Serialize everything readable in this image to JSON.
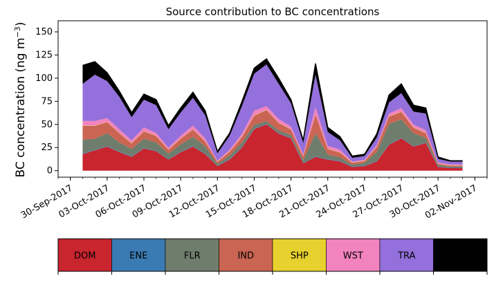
{
  "chart_data": {
    "type": "area",
    "stacked": true,
    "title": "Source contribution to BC concentrations",
    "ylabel": "BC concentration (ng m⁻³)",
    "ylabel_main": "BC concentration (ng m",
    "ylabel_sup": "−3",
    "ylabel_close": ")",
    "xlabel": "",
    "ylim": [
      -7,
      162
    ],
    "xlim": [
      "2017-09-29",
      "2017-11-03"
    ],
    "yticks": [
      0,
      25,
      50,
      75,
      100,
      125,
      150
    ],
    "xticks": [
      "30-Sep-2017",
      "03-Oct-2017",
      "06-Oct-2017",
      "09-Oct-2017",
      "12-Oct-2017",
      "15-Oct-2017",
      "18-Oct-2017",
      "21-Oct-2017",
      "24-Oct-2017",
      "27-Oct-2017",
      "30-Oct-2017",
      "02-Nov-2017"
    ],
    "series_order": [
      "DOM",
      "ENE",
      "FLR",
      "IND",
      "SHP",
      "WST",
      "TRA",
      "BB"
    ],
    "colors": {
      "DOM": "#c9252f",
      "ENE": "#3b7bb4",
      "FLR": "#6f7d6c",
      "IND": "#c96552",
      "SHP": "#e6d12e",
      "WST": "#f283be",
      "TRA": "#9370db",
      "BB": "#000000"
    },
    "series": [
      {
        "name": "DOM",
        "x": [
          "2017-10-01",
          "2017-10-02",
          "2017-10-03",
          "2017-10-04",
          "2017-10-05",
          "2017-10-06",
          "2017-10-07",
          "2017-10-08",
          "2017-10-09",
          "2017-10-10",
          "2017-10-11",
          "2017-10-12",
          "2017-10-13",
          "2017-10-14",
          "2017-10-15",
          "2017-10-16",
          "2017-10-17",
          "2017-10-18",
          "2017-10-19",
          "2017-10-20",
          "2017-10-21",
          "2017-10-22",
          "2017-10-23",
          "2017-10-24",
          "2017-10-25",
          "2017-10-26",
          "2017-10-27",
          "2017-10-28",
          "2017-10-29",
          "2017-10-30",
          "2017-10-31",
          "2017-11-01"
        ],
        "values": [
          18,
          22,
          26,
          20,
          15,
          24,
          21,
          12,
          20,
          26,
          18,
          5,
          12,
          25,
          45,
          50,
          40,
          35,
          8,
          15,
          12,
          10,
          4,
          5,
          10,
          28,
          35,
          26,
          30,
          4,
          3,
          3
        ]
      },
      {
        "name": "ENE",
        "x": [
          "2017-10-01",
          "2017-10-02",
          "2017-10-03",
          "2017-10-04",
          "2017-10-05",
          "2017-10-06",
          "2017-10-07",
          "2017-10-08",
          "2017-10-09",
          "2017-10-10",
          "2017-10-11",
          "2017-10-12",
          "2017-10-13",
          "2017-10-14",
          "2017-10-15",
          "2017-10-16",
          "2017-10-17",
          "2017-10-18",
          "2017-10-19",
          "2017-10-20",
          "2017-10-21",
          "2017-10-22",
          "2017-10-23",
          "2017-10-24",
          "2017-10-25",
          "2017-10-26",
          "2017-10-27",
          "2017-10-28",
          "2017-10-29",
          "2017-10-30",
          "2017-10-31",
          "2017-11-01"
        ],
        "values": [
          0.5,
          0.5,
          0.5,
          0.5,
          0.5,
          0.5,
          0.5,
          0.5,
          0.5,
          0.5,
          0.5,
          0.5,
          0.5,
          0.5,
          0.5,
          0.5,
          0.5,
          0.5,
          0.5,
          0.5,
          0.5,
          0.5,
          0.5,
          0.5,
          0.5,
          0.5,
          0.5,
          0.5,
          0.5,
          0.5,
          0.5,
          0.5
        ]
      },
      {
        "name": "FLR",
        "x": [
          "2017-10-01",
          "2017-10-02",
          "2017-10-03",
          "2017-10-04",
          "2017-10-05",
          "2017-10-06",
          "2017-10-07",
          "2017-10-08",
          "2017-10-09",
          "2017-10-10",
          "2017-10-11",
          "2017-10-12",
          "2017-10-13",
          "2017-10-14",
          "2017-10-15",
          "2017-10-16",
          "2017-10-17",
          "2017-10-18",
          "2017-10-19",
          "2017-10-20",
          "2017-10-21",
          "2017-10-22",
          "2017-10-23",
          "2017-10-24",
          "2017-10-25",
          "2017-10-26",
          "2017-10-27",
          "2017-10-28",
          "2017-10-29",
          "2017-10-30",
          "2017-10-31",
          "2017-11-01"
        ],
        "values": [
          15,
          12,
          14,
          10,
          8,
          10,
          9,
          6,
          8,
          10,
          8,
          2,
          4,
          5,
          4,
          3,
          3,
          3,
          3,
          25,
          5,
          4,
          2,
          3,
          10,
          22,
          20,
          14,
          5,
          2,
          1,
          1
        ]
      },
      {
        "name": "IND",
        "x": [
          "2017-10-01",
          "2017-10-02",
          "2017-10-03",
          "2017-10-04",
          "2017-10-05",
          "2017-10-06",
          "2017-10-07",
          "2017-10-08",
          "2017-10-09",
          "2017-10-10",
          "2017-10-11",
          "2017-10-12",
          "2017-10-13",
          "2017-10-14",
          "2017-10-15",
          "2017-10-16",
          "2017-10-17",
          "2017-10-18",
          "2017-10-19",
          "2017-10-20",
          "2017-10-21",
          "2017-10-22",
          "2017-10-23",
          "2017-10-24",
          "2017-10-25",
          "2017-10-26",
          "2017-10-27",
          "2017-10-28",
          "2017-10-29",
          "2017-10-30",
          "2017-10-31",
          "2017-11-01"
        ],
        "values": [
          15,
          14,
          12,
          10,
          6,
          8,
          7,
          4,
          6,
          8,
          5,
          2,
          4,
          6,
          10,
          12,
          8,
          6,
          4,
          20,
          6,
          5,
          2,
          2,
          5,
          8,
          8,
          6,
          5,
          1,
          1,
          1
        ]
      },
      {
        "name": "SHP",
        "x": [
          "2017-10-01",
          "2017-10-02",
          "2017-10-03",
          "2017-10-04",
          "2017-10-05",
          "2017-10-06",
          "2017-10-07",
          "2017-10-08",
          "2017-10-09",
          "2017-10-10",
          "2017-10-11",
          "2017-10-12",
          "2017-10-13",
          "2017-10-14",
          "2017-10-15",
          "2017-10-16",
          "2017-10-17",
          "2017-10-18",
          "2017-10-19",
          "2017-10-20",
          "2017-10-21",
          "2017-10-22",
          "2017-10-23",
          "2017-10-24",
          "2017-10-25",
          "2017-10-26",
          "2017-10-27",
          "2017-10-28",
          "2017-10-29",
          "2017-10-30",
          "2017-10-31",
          "2017-11-01"
        ],
        "values": [
          0.3,
          0.3,
          0.3,
          0.3,
          0.3,
          0.3,
          0.3,
          0.3,
          0.3,
          0.3,
          0.3,
          0.3,
          0.3,
          0.3,
          0.3,
          0.3,
          0.3,
          0.3,
          0.3,
          0.3,
          0.3,
          0.3,
          0.3,
          0.3,
          0.3,
          0.3,
          0.3,
          0.3,
          0.3,
          0.3,
          0.3,
          0.3
        ]
      },
      {
        "name": "WST",
        "x": [
          "2017-10-01",
          "2017-10-02",
          "2017-10-03",
          "2017-10-04",
          "2017-10-05",
          "2017-10-06",
          "2017-10-07",
          "2017-10-08",
          "2017-10-09",
          "2017-10-10",
          "2017-10-11",
          "2017-10-12",
          "2017-10-13",
          "2017-10-14",
          "2017-10-15",
          "2017-10-16",
          "2017-10-17",
          "2017-10-18",
          "2017-10-19",
          "2017-10-20",
          "2017-10-21",
          "2017-10-22",
          "2017-10-23",
          "2017-10-24",
          "2017-10-25",
          "2017-10-26",
          "2017-10-27",
          "2017-10-28",
          "2017-10-29",
          "2017-10-30",
          "2017-10-31",
          "2017-11-01"
        ],
        "values": [
          5,
          5,
          4,
          4,
          3,
          4,
          3,
          2,
          3,
          4,
          3,
          1,
          2,
          3,
          5,
          4,
          4,
          3,
          2,
          8,
          3,
          3,
          1,
          1,
          2,
          3,
          4,
          3,
          3,
          1,
          1,
          1
        ]
      },
      {
        "name": "TRA",
        "x": [
          "2017-10-01",
          "2017-10-02",
          "2017-10-03",
          "2017-10-04",
          "2017-10-05",
          "2017-10-06",
          "2017-10-07",
          "2017-10-08",
          "2017-10-09",
          "2017-10-10",
          "2017-10-11",
          "2017-10-12",
          "2017-10-13",
          "2017-10-14",
          "2017-10-15",
          "2017-10-16",
          "2017-10-17",
          "2017-10-18",
          "2017-10-19",
          "2017-10-20",
          "2017-10-21",
          "2017-10-22",
          "2017-10-23",
          "2017-10-24",
          "2017-10-25",
          "2017-10-26",
          "2017-10-27",
          "2017-10-28",
          "2017-10-29",
          "2017-10-30",
          "2017-10-31",
          "2017-11-01"
        ],
        "values": [
          40,
          50,
          40,
          35,
          25,
          30,
          30,
          20,
          25,
          30,
          25,
          8,
          15,
          30,
          40,
          45,
          38,
          25,
          12,
          35,
          15,
          10,
          4,
          4,
          8,
          12,
          16,
          14,
          18,
          4,
          3,
          3
        ]
      },
      {
        "name": "BB",
        "x": [
          "2017-10-01",
          "2017-10-02",
          "2017-10-03",
          "2017-10-04",
          "2017-10-05",
          "2017-10-06",
          "2017-10-07",
          "2017-10-08",
          "2017-10-09",
          "2017-10-10",
          "2017-10-11",
          "2017-10-12",
          "2017-10-13",
          "2017-10-14",
          "2017-10-15",
          "2017-10-16",
          "2017-10-17",
          "2017-10-18",
          "2017-10-19",
          "2017-10-20",
          "2017-10-21",
          "2017-10-22",
          "2017-10-23",
          "2017-10-24",
          "2017-10-25",
          "2017-10-26",
          "2017-10-27",
          "2017-10-28",
          "2017-10-29",
          "2017-10-30",
          "2017-10-31",
          "2017-11-01"
        ],
        "values": [
          20,
          14,
          9,
          6,
          5,
          6,
          6,
          4,
          5,
          6,
          5,
          2,
          3,
          5,
          6,
          6,
          6,
          4,
          3,
          12,
          5,
          4,
          2,
          2,
          4,
          8,
          10,
          7,
          6,
          2,
          1,
          1
        ]
      }
    ],
    "legend": {
      "position": "bottom",
      "labels": [
        "DOM",
        "ENE",
        "FLR",
        "IND",
        "SHP",
        "WST",
        "TRA",
        "BB"
      ]
    },
    "grid": false
  }
}
